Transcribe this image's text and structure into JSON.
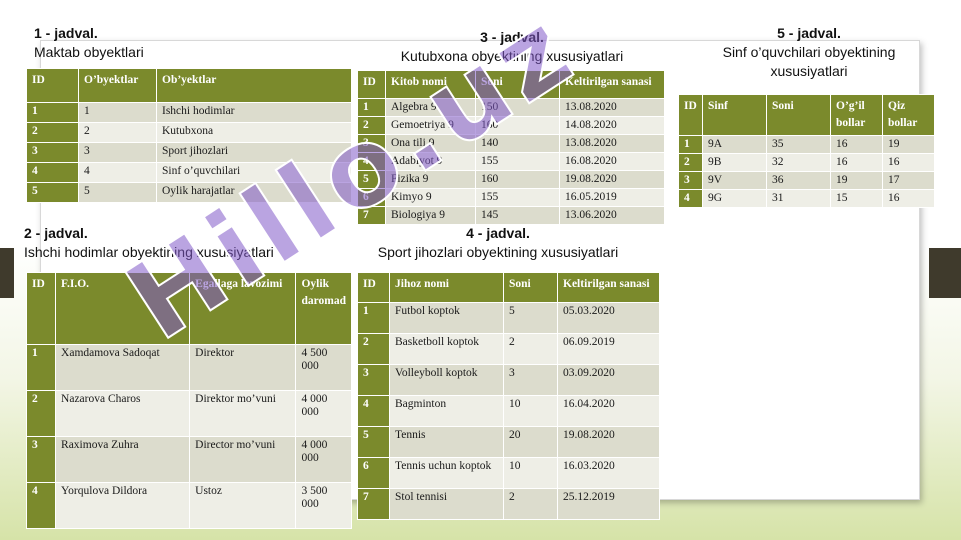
{
  "t1": {
    "number": "1 - jadval.",
    "title": "Maktab obyektlari",
    "headers": [
      "ID",
      "O’byektlar",
      "Ob’yektlar"
    ],
    "rows": [
      [
        "1",
        "1",
        "Ishchi hodimlar"
      ],
      [
        "2",
        "2",
        "Kutubxona"
      ],
      [
        "3",
        "3",
        "Sport jihozlari"
      ],
      [
        "4",
        "4",
        "Sinf o’quvchilari"
      ],
      [
        "5",
        "5",
        "Oylik harajatlar"
      ]
    ]
  },
  "t2": {
    "number": "2 - jadval.",
    "title": "Ishchi hodimlar obyektining xususiyatlari",
    "headers": [
      "ID",
      "F.I.O.",
      "Egallaga lavozimi",
      "Oylik daromad"
    ],
    "rows": [
      [
        "1",
        "Xamdamova Sadoqat",
        "Direktor",
        "4 500 000"
      ],
      [
        "2",
        "Nazarova Charos",
        "Direktor mo’vuni",
        "4 000 000"
      ],
      [
        "3",
        "Raximova Zuhra",
        "Director mo’vuni",
        "4 000 000"
      ],
      [
        "4",
        "Yorqulova Dildora",
        "Ustoz",
        "3 500 000"
      ]
    ]
  },
  "t3": {
    "number": "3 - jadval.",
    "title": "Kutubxona obyektining xususiyatlari",
    "headers": [
      "ID",
      "Kitob nomi",
      "Soni",
      "Keltirilgan sanasi"
    ],
    "rows": [
      [
        "1",
        "Algebra 9",
        "150",
        "13.08.2020"
      ],
      [
        "2",
        "Gemoetriya 9",
        "160",
        "14.08.2020"
      ],
      [
        "3",
        "Ona tili 9",
        "140",
        "13.08.2020"
      ],
      [
        "4",
        "Adabiyot 9",
        "155",
        "16.08.2020"
      ],
      [
        "5",
        "Fizika 9",
        "160",
        "19.08.2020"
      ],
      [
        "6",
        "Kimyo 9",
        "155",
        "16.05.2019"
      ],
      [
        "7",
        "Biologiya 9",
        "145",
        "13.06.2020"
      ]
    ]
  },
  "t4": {
    "number": "4 - jadval.",
    "title": "Sport jihozlari obyektining xususiyatlari",
    "headers": [
      "ID",
      "Jihoz nomi",
      "Soni",
      "Keltirilgan sanasi"
    ],
    "rows": [
      [
        "1",
        "Futbol koptok",
        "5",
        "05.03.2020"
      ],
      [
        "2",
        "Basketboll koptok",
        "2",
        "06.09.2019"
      ],
      [
        "3",
        "Volleyboll koptok",
        "3",
        "03.09.2020"
      ],
      [
        "4",
        "Bagminton",
        "10",
        "16.04.2020"
      ],
      [
        "5",
        "Tennis",
        "20",
        "19.08.2020"
      ],
      [
        "6",
        "Tennis uchun koptok",
        "10",
        "16.03.2020"
      ],
      [
        "7",
        "Stol tennisi",
        "2",
        "25.12.2019"
      ]
    ]
  },
  "t5": {
    "number": "5 - jadval.",
    "title": "Sinf o’quvchilari obyektining xususiyatlari",
    "headers": [
      "ID",
      "Sinf",
      "Soni",
      "O’g’il bollar",
      "Qiz bollar"
    ],
    "rows": [
      [
        "1",
        "9A",
        "35",
        "16",
        "19"
      ],
      [
        "2",
        "9B",
        "32",
        "16",
        "16"
      ],
      [
        "3",
        "9V",
        "36",
        "19",
        "17"
      ],
      [
        "4",
        "9G",
        "31",
        "15",
        "16"
      ]
    ]
  },
  "watermark": "Hillo.uz",
  "colors": {
    "header": "#7b8a2c",
    "row_odd": "#dcdccd",
    "row_even": "#eeeee6",
    "watermark": "#8c5ac8"
  }
}
